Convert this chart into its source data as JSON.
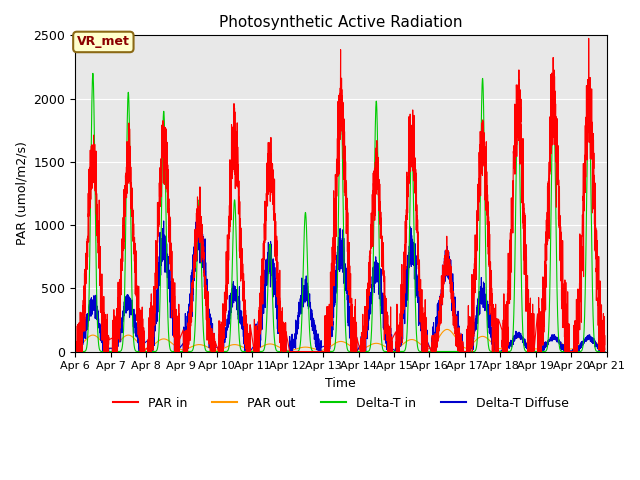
{
  "title": "Photosynthetic Active Radiation",
  "ylabel": "PAR (umol/m2/s)",
  "xlabel": "Time",
  "annotation_text": "VR_met",
  "ylim": [
    0,
    2500
  ],
  "background_color": "#e8e8e8",
  "series": {
    "par_in": {
      "color": "#ff0000",
      "label": "PAR in",
      "peaks": [
        [
          6.3,
          750
        ],
        [
          6.5,
          1300
        ],
        [
          6.6,
          1500
        ],
        [
          6.7,
          1100
        ],
        [
          7.4,
          1500
        ],
        [
          7.5,
          1700
        ],
        [
          7.6,
          1200
        ],
        [
          8.4,
          1680
        ],
        [
          8.5,
          1300
        ],
        [
          8.6,
          500
        ],
        [
          8.65,
          1230
        ],
        [
          9.4,
          520
        ],
        [
          9.5,
          1000
        ],
        [
          9.55,
          480
        ],
        [
          9.6,
          230
        ],
        [
          10.4,
          480
        ],
        [
          10.5,
          1650
        ],
        [
          10.55,
          1280
        ],
        [
          10.6,
          220
        ],
        [
          11.4,
          460
        ],
        [
          11.5,
          1550
        ],
        [
          11.55,
          600
        ],
        [
          11.6,
          1175
        ],
        [
          12.3,
          60
        ],
        [
          12.4,
          60
        ],
        [
          13.4,
          1900
        ],
        [
          13.5,
          1950
        ],
        [
          13.6,
          1900
        ],
        [
          14.4,
          1430
        ],
        [
          14.5,
          500
        ],
        [
          15.4,
          1670
        ],
        [
          15.5,
          1000
        ],
        [
          16.5,
          740
        ],
        [
          16.55,
          650
        ],
        [
          17.4,
          1700
        ],
        [
          17.5,
          1500
        ],
        [
          18.4,
          1870
        ],
        [
          18.5,
          1950
        ],
        [
          19.4,
          1950
        ],
        [
          19.5,
          2000
        ],
        [
          19.6,
          1750
        ],
        [
          20.4,
          1950
        ]
      ]
    },
    "par_out": {
      "color": "#ff9900",
      "label": "PAR out"
    },
    "delta_t_in": {
      "color": "#00cc00",
      "label": "Delta-T in"
    },
    "delta_t_diffuse": {
      "color": "#0000cc",
      "label": "Delta-T Diffuse"
    }
  },
  "xtick_labels": [
    "Apr 6",
    "Apr 7",
    "Apr 8",
    "Apr 9",
    "Apr 10",
    "Apr 11",
    "Apr 12",
    "Apr 13",
    "Apr 14",
    "Apr 15",
    "Apr 16",
    "Apr 17",
    "Apr 18",
    "Apr 19",
    "Apr 20",
    "Apr 21"
  ],
  "xtick_positions": [
    6,
    7,
    8,
    9,
    10,
    11,
    12,
    13,
    14,
    15,
    16,
    17,
    18,
    19,
    20,
    21
  ]
}
